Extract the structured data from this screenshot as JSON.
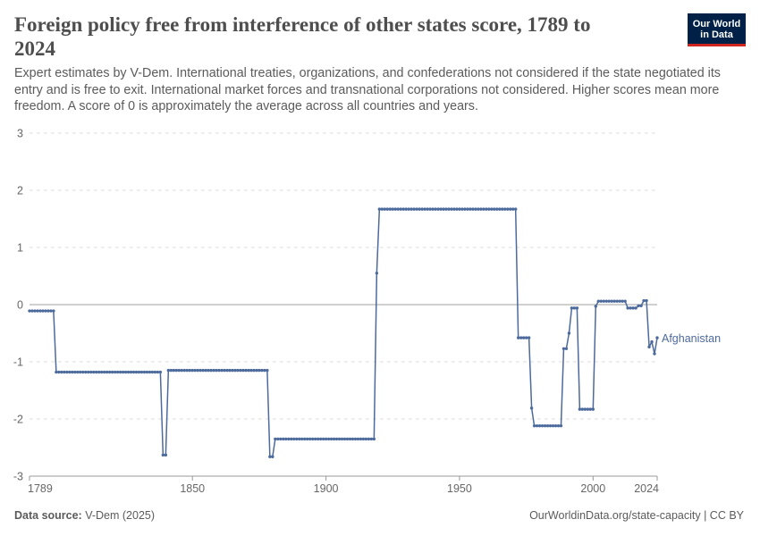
{
  "header": {
    "title": "Foreign policy free from interference of other states score, 1789 to 2024",
    "subtitle": "Expert estimates by V-Dem. International treaties, organizations, and confederations not considered if the state negotiated its entry and is free to exit. International market forces and transnational corporations not considered. Higher scores mean more freedom. A score of 0 is approximately the average across all countries and years.",
    "logo_line1": "Our World",
    "logo_line2": "in Data"
  },
  "footer": {
    "source_label": "Data source:",
    "source_value": "V-Dem (2025)",
    "url_text": "OurWorldinData.org/state-capacity | CC BY"
  },
  "colors": {
    "series": "#4c6a9c",
    "grid": "#dddddd",
    "zero_line": "#a0a0a0",
    "text": "#5b5b5b",
    "logo_bg": "#002147",
    "logo_accent": "#ce261e"
  },
  "chart_data": {
    "type": "line",
    "title": "Foreign policy free from interference of other states score, 1789 to 2024",
    "xlabel": "",
    "ylabel": "",
    "xlim": [
      1789,
      2024
    ],
    "ylim": [
      -3,
      3
    ],
    "x_ticks": [
      1789,
      1850,
      1900,
      1950,
      2000,
      2024
    ],
    "y_ticks": [
      3,
      2,
      1,
      0,
      -1,
      -2,
      -3
    ],
    "grid": true,
    "legend": "inline label at line end (right)",
    "series": [
      {
        "name": "Afghanistan",
        "segments": [
          {
            "x0": 1789,
            "x1": 1798,
            "y": -0.11
          },
          {
            "x0": 1799,
            "x1": 1838,
            "y": -1.18
          },
          {
            "x0": 1839,
            "x1": 1840,
            "y": -2.63
          },
          {
            "x0": 1841,
            "x1": 1878,
            "y": -1.15
          },
          {
            "x0": 1879,
            "x1": 1880,
            "y": -2.66
          },
          {
            "x0": 1881,
            "x1": 1918,
            "y": -2.35
          },
          {
            "x0": 1919,
            "x1": 1919,
            "y": 0.55
          },
          {
            "x0": 1920,
            "x1": 1971,
            "y": 1.67
          },
          {
            "x0": 1972,
            "x1": 1976,
            "y": -0.58
          },
          {
            "x0": 1977,
            "x1": 1977,
            "y": -1.81
          },
          {
            "x0": 1978,
            "x1": 1988,
            "y": -2.12
          },
          {
            "x0": 1989,
            "x1": 1990,
            "y": -0.77
          },
          {
            "x0": 1991,
            "x1": 1991,
            "y": -0.5
          },
          {
            "x0": 1992,
            "x1": 1994,
            "y": -0.06
          },
          {
            "x0": 1995,
            "x1": 2000,
            "y": -1.83
          },
          {
            "x0": 2001,
            "x1": 2001,
            "y": -0.03
          },
          {
            "x0": 2002,
            "x1": 2012,
            "y": 0.06
          },
          {
            "x0": 2013,
            "x1": 2016,
            "y": -0.06
          },
          {
            "x0": 2017,
            "x1": 2018,
            "y": -0.02
          },
          {
            "x0": 2019,
            "x1": 2020,
            "y": 0.07
          },
          {
            "x0": 2021,
            "x1": 2021,
            "y": -0.74
          },
          {
            "x0": 2022,
            "x1": 2022,
            "y": -0.65
          },
          {
            "x0": 2023,
            "x1": 2023,
            "y": -0.86
          },
          {
            "x0": 2024,
            "x1": 2024,
            "y": -0.58
          }
        ]
      }
    ]
  }
}
